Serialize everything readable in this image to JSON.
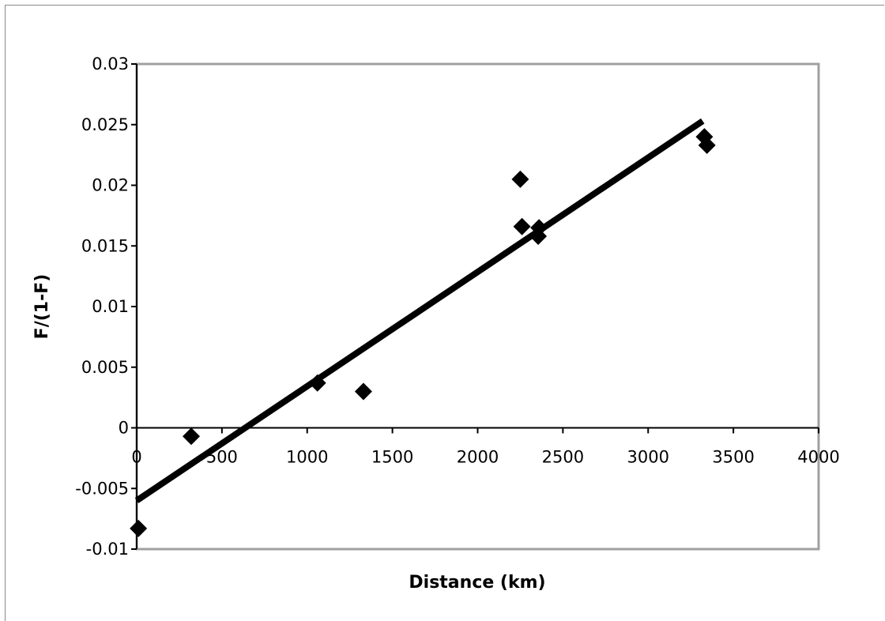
{
  "chart_data": {
    "type": "scatter",
    "title": "",
    "xlabel": "Distance (km)",
    "ylabel": "F/(1-F)",
    "xlim": [
      0,
      4000
    ],
    "ylim": [
      -0.01,
      0.03
    ],
    "x_ticks": [
      0,
      500,
      1000,
      1500,
      2000,
      2500,
      3000,
      3500,
      4000
    ],
    "x_tick_labels": [
      "0",
      "500",
      "1000",
      "1500",
      "2000",
      "2500",
      "3000",
      "3500",
      "4000"
    ],
    "y_ticks": [
      -0.01,
      -0.005,
      0,
      0.005,
      0.01,
      0.015,
      0.02,
      0.025,
      0.03
    ],
    "y_tick_labels": [
      "-0.01",
      "-0.005",
      "0",
      "0.005",
      "0.01",
      "0.015",
      "0.02",
      "0.025",
      "0.03"
    ],
    "grid": false,
    "legend": "none",
    "series": [
      {
        "marker": "diamond",
        "color": "#000000",
        "points": [
          {
            "x": 10,
            "y": -0.0083
          },
          {
            "x": 320,
            "y": -0.0007
          },
          {
            "x": 1060,
            "y": 0.0037
          },
          {
            "x": 1330,
            "y": 0.003
          },
          {
            "x": 2250,
            "y": 0.0205
          },
          {
            "x": 2260,
            "y": 0.0166
          },
          {
            "x": 2360,
            "y": 0.0165
          },
          {
            "x": 2355,
            "y": 0.0158
          },
          {
            "x": 3330,
            "y": 0.024
          },
          {
            "x": 3345,
            "y": 0.0233
          }
        ]
      }
    ],
    "trendline": {
      "type": "linear",
      "color": "#000000",
      "start": {
        "x": 0,
        "y": -0.006
      },
      "end": {
        "x": 3320,
        "y": 0.0253
      }
    },
    "colors": {
      "axis": "#000000",
      "plot_border": "#a0a0a0",
      "marker": "#000000",
      "line": "#000000"
    }
  }
}
